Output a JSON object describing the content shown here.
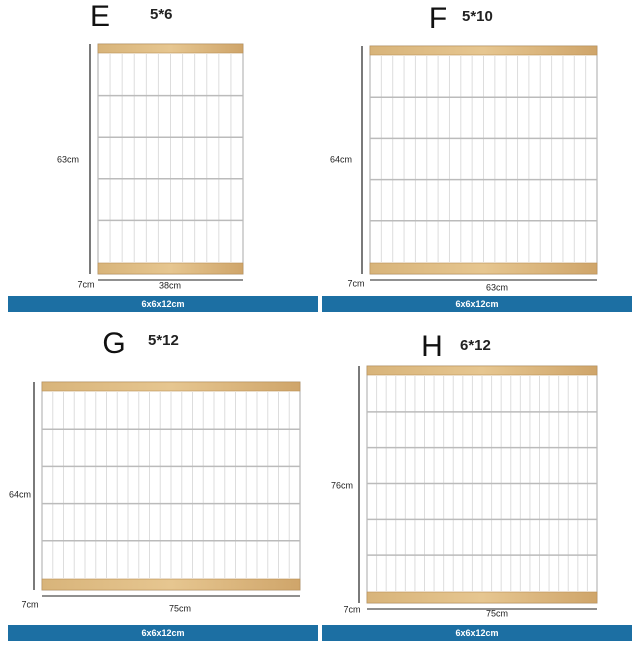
{
  "panels": [
    {
      "letter": "E",
      "size": "5*6",
      "height": "63cm",
      "depth": "7cm",
      "width": "38cm",
      "bar": "6x6x12cm"
    },
    {
      "letter": "F",
      "size": "5*10",
      "height": "64cm",
      "depth": "7cm",
      "width": "63cm",
      "bar": "6x6x12cm"
    },
    {
      "letter": "G",
      "size": "5*12",
      "height": "64cm",
      "depth": "7cm",
      "width": "75cm",
      "bar": "6x6x12cm"
    },
    {
      "letter": "H",
      "size": "6*12",
      "height": "76cm",
      "depth": "7cm",
      "width": "75cm",
      "bar": "6x6x12cm"
    }
  ]
}
